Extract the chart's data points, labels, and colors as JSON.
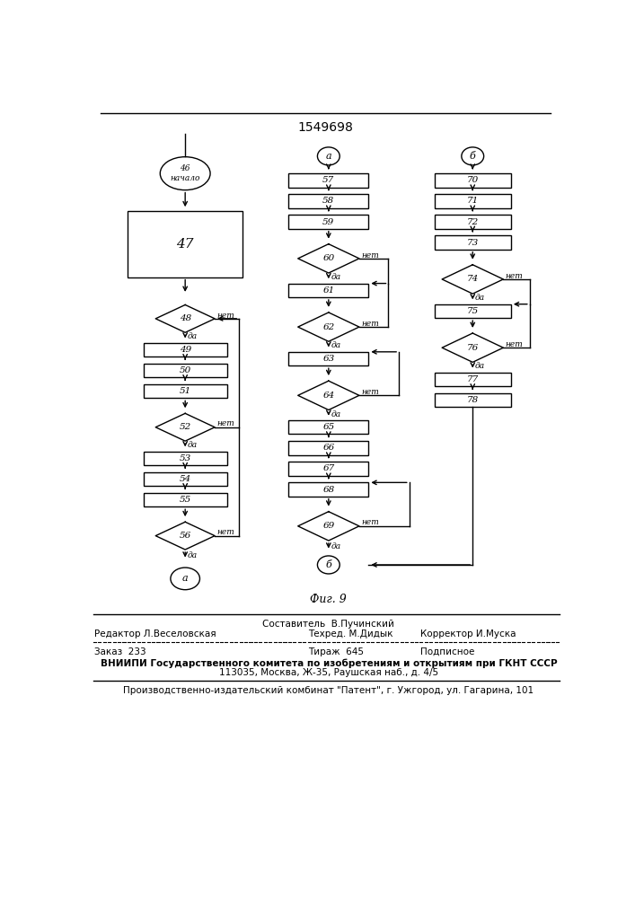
{
  "title": "1549698",
  "fig_caption": "Фиг. 9",
  "caption_line1": "Составитель  В.Пучинский",
  "caption_line2_left": "Редактор Л.Веселовская",
  "caption_line2_mid": "Техред. М.Дидык",
  "caption_line2_right": "Корректор И.Муска",
  "caption_line3_left": "Заказ  233",
  "caption_line3_mid": "Тираж  645",
  "caption_line3_right": "Подписное",
  "caption_line4": "ВНИИПИ Государственного комитета по изобретениям и открытиям при ГКНТ СССР",
  "caption_line5": "113035, Москва, Ж-35, Раушская наб., д. 4/5",
  "caption_line6": "Производственно-издательский комбинат \"Патент\", г. Ужгород, ул. Гагарина, 101",
  "bg_color": "#ffffff",
  "line_color": "#000000"
}
